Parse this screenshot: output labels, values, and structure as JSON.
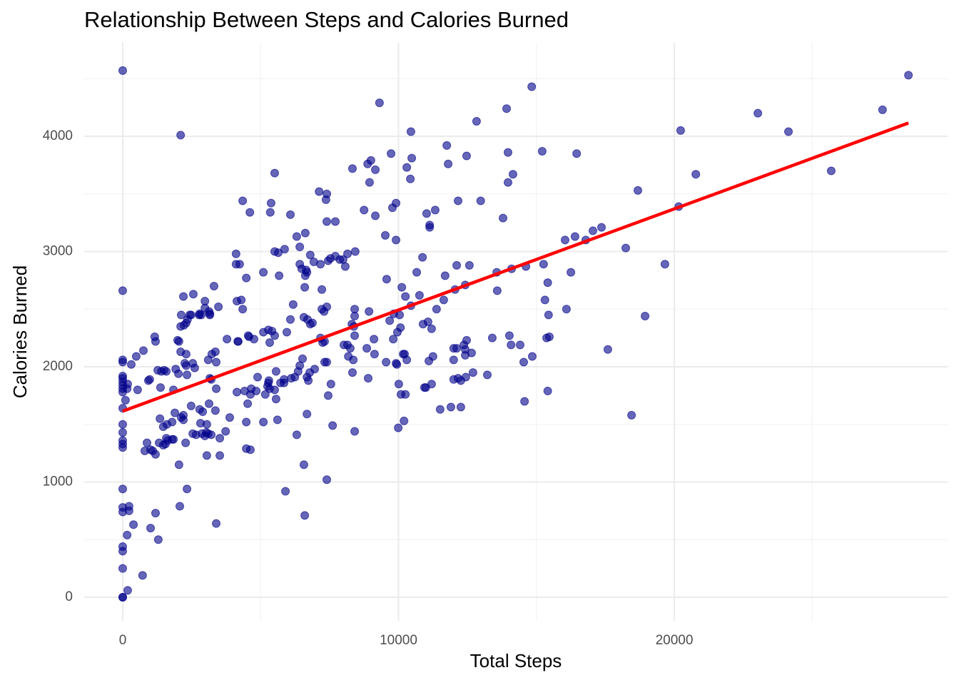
{
  "chart_data": {
    "type": "scatter",
    "title": "Relationship Between Steps and Calories Burned",
    "x_label": "Total Steps",
    "y_label": "Calories Burned",
    "color": "#00008b",
    "xlim": [
      -1397,
      29909
    ],
    "ylim": [
      -204,
      4811
    ],
    "xticks": [
      0,
      10000,
      20000
    ],
    "yticks": [
      0,
      1000,
      2000,
      3000,
      4000
    ],
    "xminor": [
      5000,
      15000,
      25000
    ],
    "yminor": [
      500,
      1500,
      2500,
      3500,
      4500
    ],
    "grid": true,
    "trend": {
      "color": "#ff0000",
      "x": [
        0,
        28490
      ],
      "y": [
        1615,
        4115
      ]
    },
    "x": [
      0,
      0,
      0,
      0,
      0,
      0,
      0,
      0,
      0,
      0,
      0,
      0,
      0,
      0,
      0,
      0,
      0,
      0,
      0,
      0,
      0,
      0,
      0,
      0,
      2100,
      180,
      230,
      230,
      160,
      390,
      720,
      1010,
      1190,
      1290,
      100,
      180,
      160,
      310,
      490,
      540,
      750,
      930,
      980,
      1160,
      1190,
      1270,
      1400,
      1500,
      1580,
      1370,
      800,
      880,
      1010,
      1090,
      1190,
      1320,
      1350,
      1470,
      1470,
      1550,
      1580,
      1600,
      1630,
      1790,
      1840,
      1790,
      1890,
      1840,
      2040,
      2070,
      2280,
      2330,
      2020,
      1920,
      2330,
      2040,
      1990,
      2100,
      2300,
      2250,
      2300,
      2540,
      2610,
      2120,
      2100,
      2220,
      2300,
      2350,
      2430,
      2480,
      2200,
      2560,
      2770,
      2790,
      2850,
      2980,
      2980,
      3130,
      3160,
      3160,
      3310,
      3470,
      3100,
      3230,
      3360,
      3390,
      3160,
      3210,
      3390,
      2200,
      2200,
      2120,
      2480,
      2790,
      2900,
      3130,
      3360,
      3050,
      2820,
      3030,
      3100,
      3210,
      2980,
      2870,
      2540,
      2660,
      3520,
      3730,
      3880,
      3050,
      3520,
      3390,
      3780,
      4170,
      4190,
      4550,
      4580,
      4760,
      4140,
      4300,
      4350,
      4110,
      4240,
      4110,
      4480,
      4610,
      4350,
      4140,
      4420,
      4480,
      4530,
      4630,
      4660,
      4840,
      4890,
      4480,
      4630,
      5100,
      5170,
      5250,
      5280,
      5300,
      5330,
      5100,
      5280,
      5330,
      5410,
      5510,
      5510,
      5560,
      5560,
      5610,
      5720,
      5850,
      5850,
      5950,
      6080,
      6180,
      5100,
      5670,
      5510,
      5640,
      5870,
      5350,
      5380,
      5510,
      6080,
      5900,
      6310,
      6110,
      6240,
      6360,
      6420,
      6520,
      6570,
      6700,
      6800,
      6880,
      6680,
      6730,
      6780,
      6960,
      6570,
      6600,
      6680,
      6600,
      6620,
      6650,
      6680,
      6490,
      6420,
      6800,
      6930,
      6420,
      6310,
      6620,
      7120,
      7370,
      7400,
      7400,
      7710,
      7170,
      7450,
      7530,
      7710,
      7870,
      7990,
      8070,
      8150,
      8430,
      7220,
      7220,
      7300,
      7400,
      7170,
      7250,
      7320,
      7320,
      7400,
      7450,
      7550,
      7610,
      7400,
      8020,
      8150,
      8180,
      8250,
      8310,
      8380,
      8410,
      8410,
      8410,
      8330,
      8360,
      8410,
      8850,
      8900,
      8930,
      9110,
      9130,
      8330,
      8750,
      8880,
      8950,
      9000,
      9160,
      9160,
      9520,
      9780,
      9910,
      9910,
      9730,
      9310,
      9570,
      9550,
      9680,
      9810,
      9830,
      9910,
      9940,
      9960,
      10040,
      10070,
      10120,
      10250,
      10450,
      10660,
      10760,
      10870,
      10890,
      11070,
      11200,
      11380,
      11640,
      11690,
      10170,
      10220,
      10300,
      11100,
      11250,
      10010,
      9990,
      10090,
      10250,
      10200,
      10940,
      10990,
      11200,
      11510,
      11900,
      12260,
      12000,
      12160,
      12260,
      12440,
      12700,
      13220,
      12000,
      12000,
      12110,
      12370,
      12420,
      12420,
      12470,
      12650,
      13400,
      12050,
      12420,
      12110,
      12570,
      10300,
      10430,
      10480,
      10450,
      11020,
      11130,
      11130,
      11330,
      11750,
      11800,
      12160,
      12470,
      12830,
      12980,
      13560,
      13580,
      13790,
      13920,
      13970,
      13970,
      14150,
      14100,
      14020,
      14080,
      14410,
      14540,
      14570,
      14620,
      14830,
      14850,
      15210,
      15260,
      15310,
      15410,
      15440,
      15370,
      15470,
      15410,
      16090,
      16250,
      16040,
      16400,
      16460,
      16790,
      17050,
      17360,
      18240,
      18450,
      18680,
      18940,
      19660,
      20160,
      20230,
      20780,
      23030,
      24140,
      25690,
      27550,
      28490,
      17590
    ],
    "y": [
      4570,
      2660,
      2060,
      2040,
      1920,
      1900,
      1870,
      1840,
      1810,
      1780,
      1640,
      1500,
      1430,
      1360,
      1330,
      1300,
      940,
      780,
      740,
      440,
      400,
      250,
      0,
      0,
      4010,
      60,
      790,
      750,
      540,
      630,
      190,
      600,
      730,
      500,
      1710,
      1850,
      1810,
      2020,
      2090,
      1800,
      2140,
      1880,
      1890,
      2260,
      2220,
      1970,
      1960,
      1970,
      1960,
      1820,
      1270,
      1340,
      1280,
      1270,
      1240,
      1340,
      1550,
      1320,
      1480,
      1330,
      1380,
      1500,
      1360,
      1370,
      1370,
      1520,
      1600,
      1800,
      1150,
      790,
      1340,
      940,
      1940,
      1980,
      1930,
      2220,
      2230,
      2130,
      2110,
      2030,
      2010,
      2030,
      1990,
      2450,
      2350,
      2360,
      2380,
      2410,
      2450,
      2450,
      2610,
      2630,
      2450,
      2460,
      2450,
      2570,
      2510,
      2480,
      2460,
      2450,
      2700,
      2520,
      2060,
      2110,
      2130,
      2040,
      1900,
      1890,
      1810,
      1580,
      1540,
      1560,
      1660,
      1630,
      1610,
      1680,
      1620,
      1500,
      1510,
      1430,
      1420,
      1410,
      1400,
      1420,
      1420,
      1410,
      1380,
      1440,
      1560,
      1230,
      1230,
      640,
      2240,
      2220,
      2220,
      2270,
      2260,
      2240,
      2570,
      2580,
      2500,
      2890,
      2890,
      2980,
      2770,
      3340,
      3440,
      1780,
      1790,
      1520,
      1680,
      1760,
      1810,
      1790,
      1910,
      1290,
      1280,
      1520,
      1760,
      1830,
      1860,
      1880,
      1810,
      2300,
      2320,
      2210,
      2310,
      2270,
      1800,
      1720,
      1960,
      1540,
      1860,
      1860,
      1890,
      2300,
      2410,
      2540,
      2820,
      2790,
      3000,
      2990,
      3020,
      3340,
      3420,
      3680,
      3320,
      920,
      1410,
      1900,
      1910,
      1960,
      2010,
      2070,
      2430,
      2410,
      2370,
      2380,
      1910,
      1880,
      1950,
      1980,
      1150,
      710,
      1590,
      2690,
      2790,
      2840,
      2820,
      2850,
      2890,
      2970,
      2910,
      3040,
      3130,
      3160,
      3520,
      3450,
      3500,
      3260,
      3260,
      2890,
      2920,
      2940,
      2960,
      2930,
      2930,
      2870,
      2980,
      3000,
      2670,
      2500,
      2480,
      2520,
      2250,
      2210,
      2220,
      2040,
      2040,
      1750,
      1850,
      1490,
      1020,
      2190,
      2190,
      2090,
      2160,
      2370,
      2350,
      2270,
      2440,
      2500,
      1950,
      2060,
      1440,
      2160,
      1900,
      2480,
      2240,
      2110,
      3720,
      3360,
      3760,
      3600,
      3790,
      3710,
      3310,
      3140,
      3380,
      3420,
      3100,
      3850,
      4290,
      2760,
      2040,
      2400,
      2240,
      2460,
      2030,
      2020,
      2300,
      2450,
      2340,
      2690,
      2610,
      2530,
      2820,
      2620,
      2950,
      2370,
      2390,
      2330,
      2500,
      2580,
      2790,
      2110,
      2110,
      2060,
      2050,
      2090,
      1850,
      1470,
      1760,
      1760,
      1530,
      1820,
      1820,
      1850,
      1630,
      1650,
      1650,
      1890,
      1900,
      1880,
      1910,
      1950,
      1930,
      2060,
      2160,
      2160,
      2190,
      2150,
      2100,
      2230,
      2120,
      2250,
      2670,
      2710,
      2880,
      2880,
      3730,
      3630,
      3810,
      4040,
      3330,
      3230,
      3210,
      3360,
      3920,
      3760,
      3440,
      3830,
      4130,
      3440,
      2820,
      2660,
      3290,
      4240,
      3860,
      3600,
      3670,
      2850,
      2270,
      2190,
      2190,
      2040,
      1700,
      2870,
      4430,
      2090,
      3870,
      2890,
      2580,
      2730,
      2450,
      2250,
      2260,
      1790,
      2500,
      2820,
      3100,
      3130,
      3850,
      3100,
      3180,
      3210,
      3030,
      1580,
      3530,
      2440,
      2890,
      3390,
      4050,
      3670,
      4200,
      4040,
      3700,
      4230,
      4530,
      2150
    ]
  }
}
